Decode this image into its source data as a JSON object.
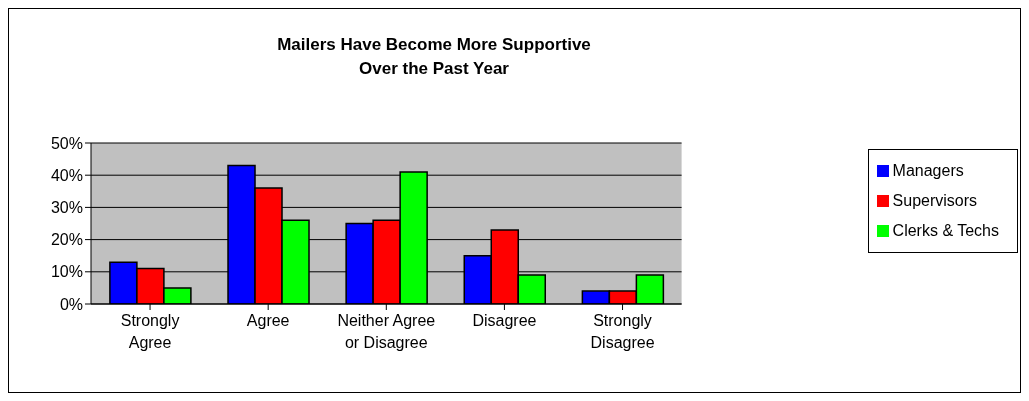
{
  "chart_data": {
    "type": "bar",
    "title": "Mailers Have Become More Supportive Over the Past Year",
    "categories": [
      "Strongly Agree",
      "Agree",
      "Neither Agree or Disagree",
      "Disagree",
      "Strongly Disagree"
    ],
    "series": [
      {
        "name": "Managers",
        "color": "#0000ff",
        "values": [
          13,
          43,
          25,
          15,
          4
        ]
      },
      {
        "name": "Supervisors",
        "color": "#ff0000",
        "values": [
          11,
          36,
          26,
          23,
          4
        ]
      },
      {
        "name": "Clerks & Techs",
        "color": "#00ff00",
        "values": [
          5,
          26,
          41,
          9,
          9
        ]
      }
    ],
    "ylim": [
      0,
      50
    ],
    "yticks": [
      {
        "value": 0,
        "label": "0%"
      },
      {
        "value": 10,
        "label": "10%"
      },
      {
        "value": 20,
        "label": "20%"
      },
      {
        "value": 30,
        "label": "30%"
      },
      {
        "value": 40,
        "label": "40%"
      },
      {
        "value": 50,
        "label": "50%"
      }
    ],
    "grid": "y",
    "legend": "right"
  }
}
